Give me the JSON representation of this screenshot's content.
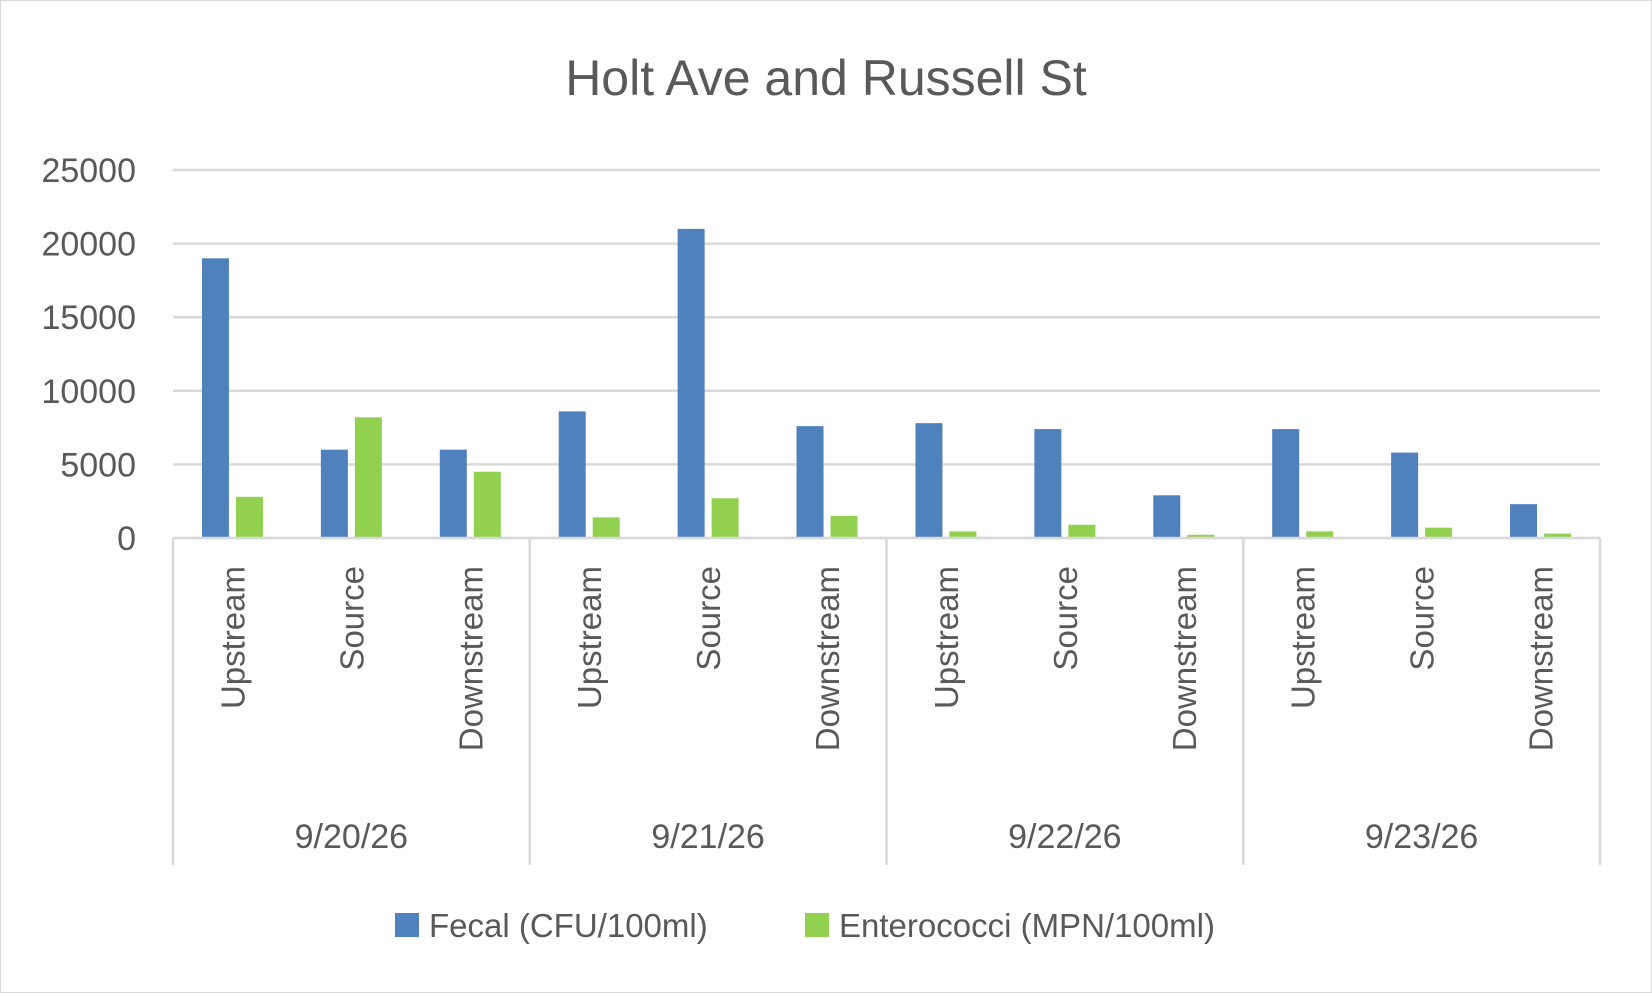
{
  "chart_data": {
    "type": "bar",
    "title": "Holt Ave and Russell St",
    "xlabel": "",
    "ylabel": "",
    "ylim": [
      0,
      25000
    ],
    "yticks": [
      "0",
      "5000",
      "10000",
      "15000",
      "20000",
      "25000"
    ],
    "grid": true,
    "legend_position": "bottom",
    "groups": [
      {
        "label": "9/20/26",
        "categories": [
          "Upstream",
          "Source",
          "Downstream"
        ]
      },
      {
        "label": "9/21/26",
        "categories": [
          "Upstream",
          "Source",
          "Downstream"
        ]
      },
      {
        "label": "9/22/26",
        "categories": [
          "Upstream",
          "Source",
          "Downstream"
        ]
      },
      {
        "label": "9/23/26",
        "categories": [
          "Upstream",
          "Source",
          "Downstream"
        ]
      }
    ],
    "series": [
      {
        "name": "Fecal (CFU/100ml)",
        "color": "#4f81bd",
        "values": [
          19000,
          6000,
          6000,
          8600,
          21000,
          7600,
          7800,
          7400,
          2900,
          7400,
          5800,
          2300
        ]
      },
      {
        "name": "Enterococci (MPN/100ml)",
        "color": "#92d050",
        "values": [
          2800,
          8200,
          4500,
          1400,
          2700,
          1500,
          450,
          900,
          220,
          450,
          700,
          300
        ]
      }
    ]
  }
}
